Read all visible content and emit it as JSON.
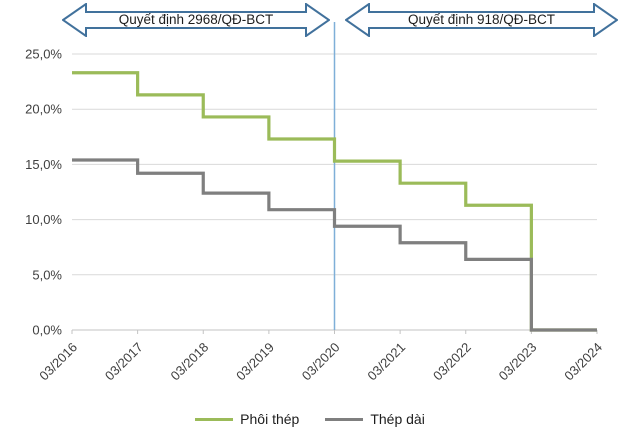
{
  "annotations": {
    "left_arrow_label": "Quyết định 2968/QĐ-BCT",
    "right_arrow_label": "Quyết định 918/QĐ-BCT",
    "arrow_border_color": "#41719C",
    "arrow_fill_color": "#FEFEFF"
  },
  "chart_data": {
    "type": "line",
    "subtype": "step-after",
    "x": [
      "03/2016",
      "03/2017",
      "03/2018",
      "03/2019",
      "03/2020",
      "03/2021",
      "03/2022",
      "03/2023",
      "03/2024"
    ],
    "series": [
      {
        "name": "Phôi thép",
        "color": "#9BBB59",
        "values": [
          23.3,
          21.3,
          19.3,
          17.3,
          15.3,
          13.3,
          11.3,
          0,
          0
        ]
      },
      {
        "name": "Thép dài",
        "color": "#7F7F7F",
        "values": [
          15.4,
          14.2,
          12.4,
          10.9,
          9.4,
          7.9,
          6.4,
          0,
          0
        ]
      }
    ],
    "ylim": [
      0,
      25
    ],
    "ytick_step": 5,
    "ytick_labels": [
      "0,0%",
      "5,0%",
      "10,0%",
      "15,0%",
      "20,0%",
      "25,0%"
    ],
    "divider_index": 4,
    "divider_color": "#7FAFD8",
    "grid_color": "#D9D9D9",
    "axis_color": "#C3C3C3",
    "tick_label_color": "#3F3F3F",
    "legend_position": "bottom",
    "grid": "horizontal"
  }
}
